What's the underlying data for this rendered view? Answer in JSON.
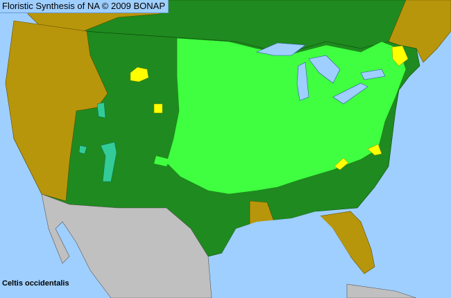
{
  "header": {
    "title": "Floristic Synthesis of NA © 2009 BONAP"
  },
  "species_label": "Celtis occidentalis",
  "colors": {
    "water": "#9fcfff",
    "present_native": "#1f8a1f",
    "present_common": "#40ff40",
    "absent": "#b8960c",
    "rare_or_extirpated": "#ffff00",
    "introduced": "#33cc99",
    "outside_area": "#c0c0c0"
  }
}
